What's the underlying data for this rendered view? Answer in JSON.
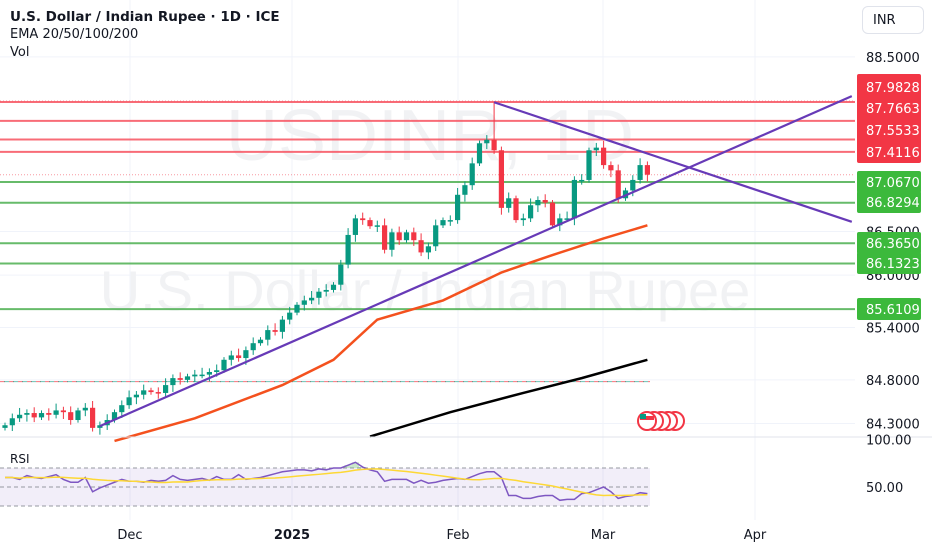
{
  "header": {
    "title": "U.S. Dollar / Indian Rupee · 1D · ICE",
    "indicator": "EMA 20/50/100/200",
    "volume": "Vol",
    "currency_button": "INR"
  },
  "watermark": {
    "line1": "USDINR, 1D",
    "line2": "U.S. Dollar / Indian Rupee"
  },
  "colors": {
    "up": "#089981",
    "down": "#f23645",
    "resistance": "#f7525f",
    "support": "#4caf50",
    "tag_red": "#f23645",
    "tag_green": "#3cb93c",
    "trendline": "#673ab7",
    "ema_orange": "#f4511e",
    "ema_black": "#000000",
    "rsi": "#7e57c2",
    "rsi_ma": "#fdd835"
  },
  "chart_data": {
    "type": "candlestick",
    "scale": "linear",
    "ylim": [
      84.25,
      88.55
    ],
    "y_ticks": [
      "88.5000",
      "86.5000",
      "86.0000",
      "85.4000",
      "84.8000",
      "84.3000"
    ],
    "x_ticks": [
      "Dec",
      "2025",
      "Feb",
      "Mar",
      "Apr"
    ],
    "close": [
      84.28,
      84.36,
      84.4,
      84.42,
      84.37,
      84.42,
      84.4,
      84.45,
      84.43,
      84.34,
      84.45,
      84.48,
      84.25,
      84.28,
      84.34,
      84.43,
      84.51,
      84.6,
      84.63,
      84.68,
      84.66,
      84.65,
      84.74,
      84.82,
      84.8,
      84.84,
      84.86,
      84.86,
      84.89,
      84.91,
      85.03,
      85.08,
      85.05,
      85.14,
      85.22,
      85.26,
      85.37,
      85.35,
      85.49,
      85.57,
      85.66,
      85.71,
      85.74,
      85.81,
      85.83,
      85.89,
      86.12,
      86.46,
      86.65,
      86.63,
      86.56,
      86.57,
      86.29,
      86.49,
      86.4,
      86.49,
      86.4,
      86.26,
      86.33,
      86.57,
      86.63,
      86.63,
      86.92,
      87.03,
      87.28,
      87.51,
      87.55,
      87.43,
      86.77,
      86.88,
      86.63,
      86.65,
      86.8,
      86.86,
      86.83,
      86.57,
      86.65,
      86.65,
      87.09,
      87.09,
      87.43,
      87.46,
      87.26,
      87.2,
      86.88,
      86.97,
      87.09,
      87.26,
      87.15
    ],
    "notable_high": {
      "index": 67,
      "value": 87.98
    },
    "resistance_levels": [
      87.9828,
      87.7663,
      87.5533,
      87.4116
    ],
    "support_levels": [
      87.067,
      86.8294,
      86.365,
      86.1323,
      85.6109
    ],
    "ema_orange": [
      [
        15,
        84.1
      ],
      [
        26,
        84.36
      ],
      [
        38,
        84.74
      ],
      [
        45,
        85.03
      ],
      [
        51,
        85.49
      ],
      [
        60,
        85.71
      ],
      [
        68,
        86.03
      ],
      [
        75,
        86.23
      ],
      [
        82,
        86.42
      ],
      [
        88,
        86.57
      ]
    ],
    "ema_black": [
      [
        50,
        84.15
      ],
      [
        61,
        84.43
      ],
      [
        71,
        84.65
      ],
      [
        79,
        84.82
      ],
      [
        88,
        85.03
      ]
    ],
    "trendline_up": [
      [
        13,
        84.27
      ],
      [
        116,
        88.05
      ]
    ],
    "trendline_down": [
      [
        67,
        87.98
      ],
      [
        116,
        86.61
      ]
    ],
    "dashed_level": 84.78,
    "rsi": {
      "label": "RSI",
      "ticks": [
        "100.00",
        "50.00"
      ],
      "bands": [
        70,
        50,
        30
      ],
      "values": [
        60,
        60,
        58,
        62,
        60,
        59,
        61,
        63,
        58,
        55,
        55,
        60,
        45,
        49,
        52,
        55,
        58,
        56,
        56,
        55,
        57,
        56,
        57,
        62,
        58,
        57,
        58,
        59,
        57,
        61,
        58,
        58,
        63,
        58,
        59,
        60,
        62,
        64,
        66,
        67,
        68,
        68,
        67,
        69,
        68,
        70,
        70,
        73,
        76,
        71,
        68,
        66,
        56,
        58,
        58,
        58,
        54,
        57,
        54,
        55,
        57,
        58,
        59,
        58,
        61,
        64,
        66,
        66,
        60,
        41,
        41,
        38,
        38,
        40,
        41,
        41,
        36,
        37,
        37,
        43,
        44,
        47,
        50,
        45,
        38,
        40,
        41,
        44,
        43
      ]
    }
  }
}
